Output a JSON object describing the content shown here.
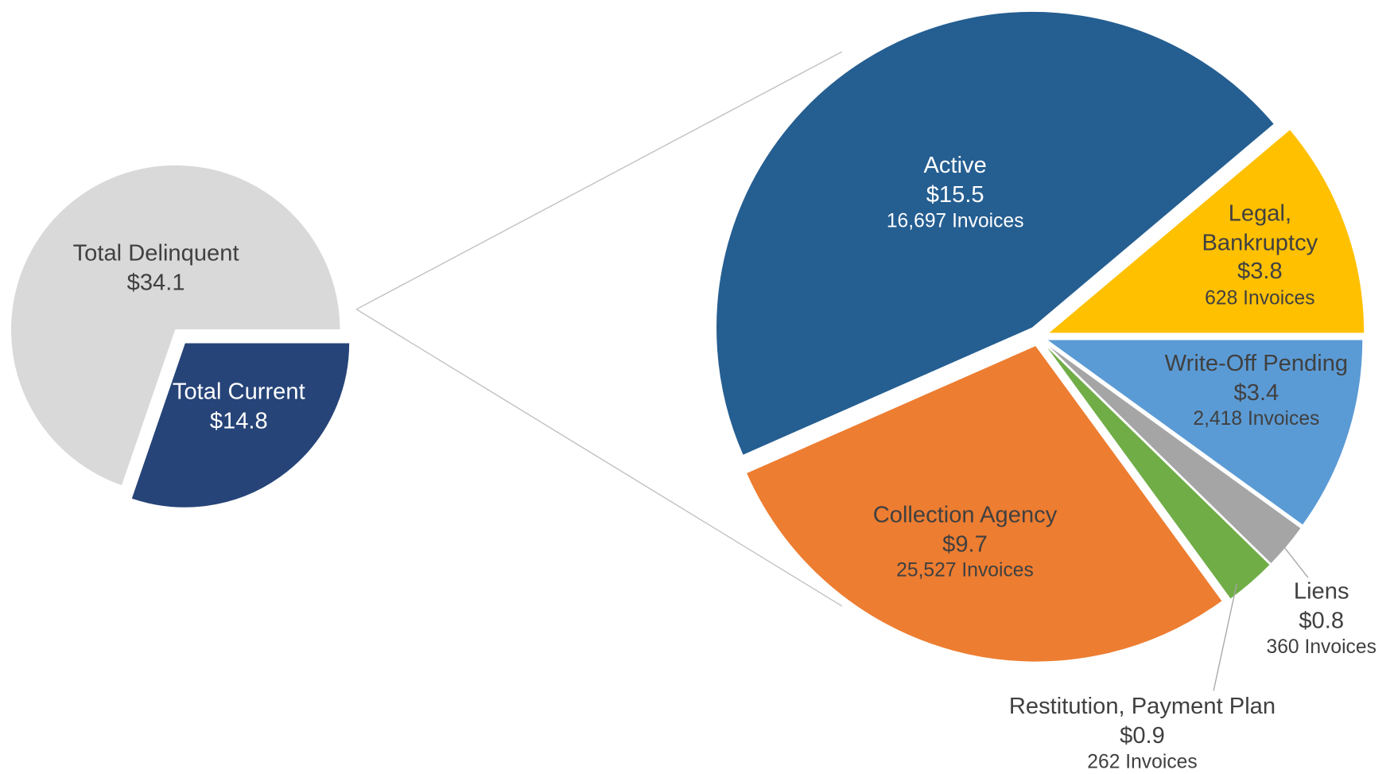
{
  "chart_data": [
    {
      "type": "pie",
      "categories": [
        "Total Delinquent",
        "Total Current"
      ],
      "values": [
        34.1,
        14.8
      ],
      "value_labels": [
        "$34.1",
        "$14.8"
      ],
      "colors": [
        "#d9d9d9",
        "#264478"
      ]
    },
    {
      "type": "pie",
      "categories": [
        "Write-Off Pending",
        "Liens",
        "Restitution, Payment Plan",
        "Collection Agency",
        "Active",
        "Legal, Bankruptcy"
      ],
      "values": [
        3.4,
        0.8,
        0.9,
        9.7,
        15.5,
        3.8
      ],
      "value_labels": [
        "$3.4",
        "$0.8",
        "$0.9",
        "$9.7",
        "$15.5",
        "$3.8"
      ],
      "invoice_labels": [
        "2,418 Invoices",
        "360 Invoices",
        "262 Invoices",
        "25,527 Invoices",
        "16,697 Invoices",
        "628 Invoices"
      ],
      "colors": [
        "#5b9bd5",
        "#a5a5a5",
        "#70ad47",
        "#ed7d31",
        "#255e91",
        "#ffc000"
      ]
    }
  ]
}
